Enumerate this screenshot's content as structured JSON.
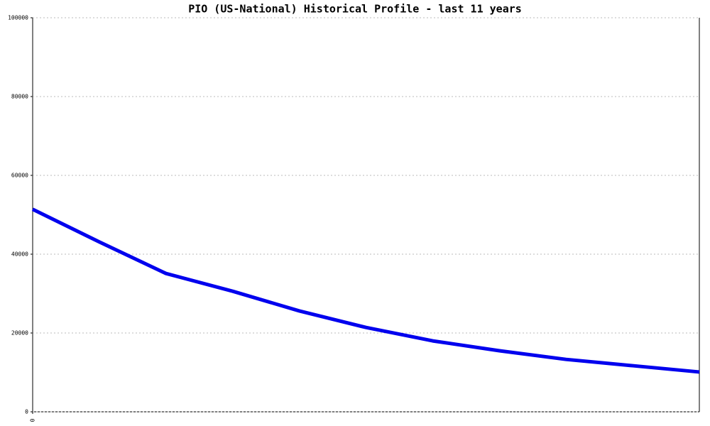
{
  "chart_data": {
    "type": "line",
    "title": "PIO (US-National) Historical Profile - last 11 years",
    "x": [
      0,
      1,
      2,
      3,
      4,
      5,
      6,
      7,
      8,
      9,
      10
    ],
    "values": [
      51400,
      43100,
      35100,
      30600,
      25600,
      21400,
      18000,
      15500,
      13300,
      11700,
      10100
    ],
    "color": "#0000ee",
    "xlim": [
      0,
      10
    ],
    "xticks": [
      0
    ],
    "ylim": [
      0,
      100000
    ],
    "yticks": [
      0,
      20000,
      40000,
      60000,
      80000,
      100000
    ],
    "grid": true
  }
}
